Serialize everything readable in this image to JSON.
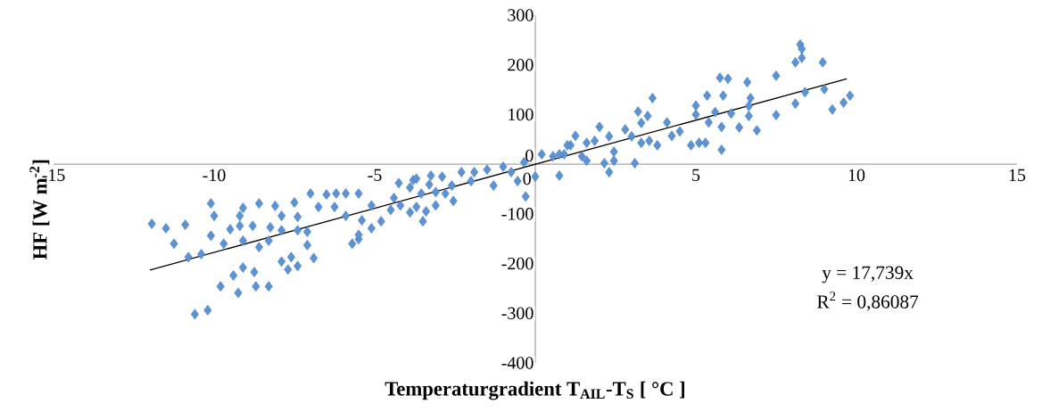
{
  "chart_data": {
    "type": "scatter",
    "xlabel": "Temperaturgradient T$_{AIL}$-T$_{S}$ [ °C ]",
    "ylabel": "HF [W m$^{-2}$]",
    "xlim": [
      -15,
      15
    ],
    "ylim": [
      -400,
      300
    ],
    "xticks": [
      -15,
      -10,
      -5,
      0,
      5,
      10,
      15
    ],
    "yticks": [
      -400,
      -300,
      -200,
      -100,
      0,
      100,
      200,
      300
    ],
    "annotations": [
      "y = 17,739x",
      "R$^{2}$ = 0,86087"
    ],
    "series": [
      {
        "type": "scatter",
        "color": "#5b94d6",
        "marker": "diamond",
        "x": [
          -11.94,
          -11.5,
          -10.9,
          -10.1,
          -10.0,
          -11.25,
          -10.8,
          -10.4,
          -10.1,
          -9.7,
          -9.5,
          -9.2,
          -9.2,
          -9.1,
          -9.1,
          -8.8,
          -8.6,
          -8.6,
          -8.3,
          -8.25,
          -8.1,
          -7.9,
          -7.9,
          -7.5,
          -7.4,
          -7.4,
          -7.1,
          -7.1,
          -7.0,
          -6.75,
          -6.9,
          -6.5,
          -6.2,
          -5.9,
          -6.25,
          -5.9,
          -5.7,
          -5.5,
          -7.9,
          -7.6,
          -7.7,
          -7.4,
          -9.1,
          -8.75,
          -9.4,
          -9.8,
          -9.25,
          -8.7,
          -8.3,
          -10.6,
          -10.2,
          -5.5,
          -5.1,
          -5.4,
          -5.1,
          -5.5,
          -4.8,
          -4.5,
          -4.4,
          -4.25,
          -3.9,
          -3.8,
          -4.2,
          -3.9,
          -3.7,
          -3.5,
          -3.55,
          -3.3,
          -3.1,
          -3.1,
          -2.9,
          -2.8,
          -2.6,
          -2.55,
          -2.3,
          -2.0,
          -1.9,
          -1.5,
          -1.3,
          -1.0,
          -0.75,
          -0.55,
          -0.3,
          0.0,
          -0.35,
          0.2,
          0.55,
          0.75,
          0.9,
          1.1,
          -3.25,
          -3.7,
          -3.4,
          3.65,
          3.2,
          3.5,
          3.3,
          4.1,
          2.0,
          1.25,
          2.8,
          2.3,
          1.85,
          1.6,
          3.0,
          3.3,
          3.55,
          3.8,
          4.25,
          4.5,
          1.0,
          0.75,
          1.45,
          1.6,
          2.45,
          2.45,
          2.15,
          2.3,
          3.1,
          4.85,
          5.1,
          5.3,
          5.8,
          5.0,
          5.35,
          5.8,
          5.4,
          8.25,
          8.3,
          8.1,
          8.3,
          8.95,
          7.5,
          5.75,
          6.0,
          6.6,
          5.85,
          6.7,
          8.4,
          9.0,
          9.8,
          9.6,
          9.25,
          8.1,
          7.5,
          6.65,
          6.65,
          6.1,
          6.35,
          6.9,
          5.6,
          5.0
        ],
        "values": [
          -120,
          -129,
          -122,
          -79,
          -104,
          -160,
          -187,
          -181,
          -144,
          -160,
          -131,
          -124,
          -104,
          -88,
          -154,
          -124,
          -79,
          -167,
          -154,
          -127,
          -84,
          -104,
          -133,
          -77,
          -106,
          -133,
          -136,
          -163,
          -59,
          -86,
          -189,
          -61,
          -59,
          -59,
          -86,
          -104,
          -160,
          -151,
          -196,
          -187,
          -212,
          -205,
          -208,
          -217,
          -224,
          -246,
          -259,
          -246,
          -246,
          -302,
          -294,
          -59,
          -83,
          -113,
          -129,
          -142,
          -115,
          -92,
          -68,
          -38,
          -47,
          -32,
          -83,
          -97,
          -86,
          -115,
          -59,
          -41,
          -83,
          -56,
          -25,
          -59,
          -43,
          -74,
          -16,
          -34,
          -16,
          -11,
          -43,
          -5,
          -16,
          -34,
          -65,
          -25,
          4,
          20,
          16,
          -23,
          20,
          38,
          -23,
          -29,
          -95,
          133,
          106,
          97,
          83,
          84,
          75,
          57,
          70,
          56,
          47,
          43,
          56,
          43,
          47,
          38,
          57,
          66,
          38,
          20,
          16,
          7,
          25,
          7,
          2,
          -16,
          2,
          38,
          43,
          43,
          29,
          118,
          138,
          75,
          84,
          241,
          232,
          205,
          214,
          205,
          178,
          174,
          172,
          165,
          138,
          133,
          145,
          151,
          138,
          124,
          110,
          122,
          99,
          117,
          97,
          102,
          74,
          68,
          105,
          100
        ]
      },
      {
        "type": "line",
        "color": "#000000",
        "marker": "none",
        "x": [
          -12,
          9.7
        ],
        "values": [
          -213,
          172
        ]
      }
    ]
  }
}
